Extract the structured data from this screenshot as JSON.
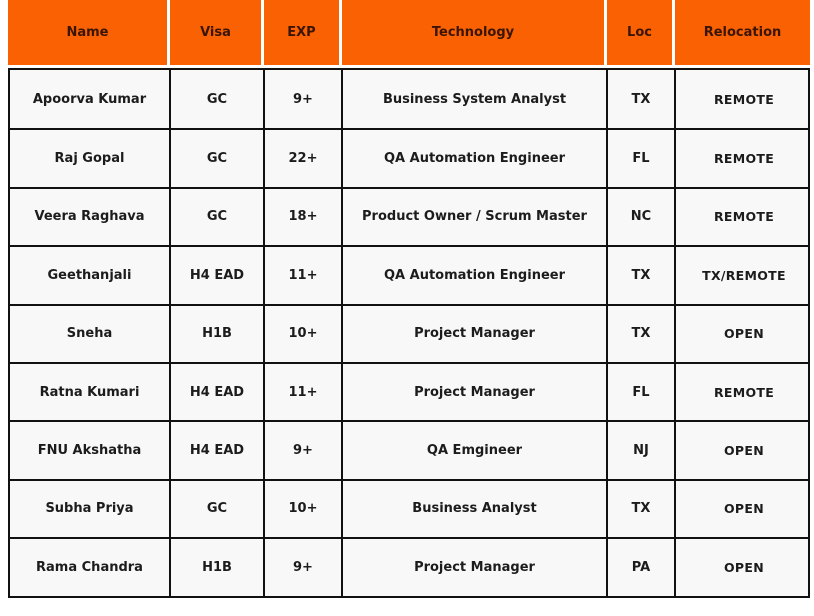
{
  "table": {
    "columns": {
      "name": "Name",
      "visa": "Visa",
      "exp": "EXP",
      "technology": "Technology",
      "loc": "Loc",
      "relocation": "Relocation"
    },
    "rows": [
      {
        "name": "Apoorva Kumar",
        "visa": "GC",
        "exp": "9+",
        "technology": "Business System Analyst",
        "loc": "TX",
        "relocation": "REMOTE"
      },
      {
        "name": "Raj Gopal",
        "visa": "GC",
        "exp": "22+",
        "technology": "QA Automation Engineer",
        "loc": "FL",
        "relocation": "REMOTE"
      },
      {
        "name": "Veera Raghava",
        "visa": "GC",
        "exp": "18+",
        "technology": "Product Owner / Scrum Master",
        "loc": "NC",
        "relocation": "REMOTE"
      },
      {
        "name": "Geethanjali",
        "visa": "H4 EAD",
        "exp": "11+",
        "technology": "QA Automation Engineer",
        "loc": "TX",
        "relocation": "TX/REMOTE"
      },
      {
        "name": "Sneha",
        "visa": "H1B",
        "exp": "10+",
        "technology": "Project Manager",
        "loc": "TX",
        "relocation": "OPEN"
      },
      {
        "name": "Ratna Kumari",
        "visa": "H4 EAD",
        "exp": "11+",
        "technology": "Project Manager",
        "loc": "FL",
        "relocation": "REMOTE"
      },
      {
        "name": "FNU Akshatha",
        "visa": "H4 EAD",
        "exp": "9+",
        "technology": "QA Emgineer",
        "loc": "NJ",
        "relocation": "OPEN"
      },
      {
        "name": "Subha Priya",
        "visa": "GC",
        "exp": "10+",
        "technology": "Business Analyst",
        "loc": "TX",
        "relocation": "OPEN"
      },
      {
        "name": "Rama Chandra",
        "visa": "H1B",
        "exp": "9+",
        "technology": "Project Manager",
        "loc": "PA",
        "relocation": "OPEN"
      }
    ]
  },
  "colors": {
    "header_bg": "#f96102",
    "header_text": "#3a1505",
    "body_bg": "#f8f8f9",
    "body_text": "#1c1c1c",
    "border": "#111111",
    "page_bg": "#ffffff"
  }
}
